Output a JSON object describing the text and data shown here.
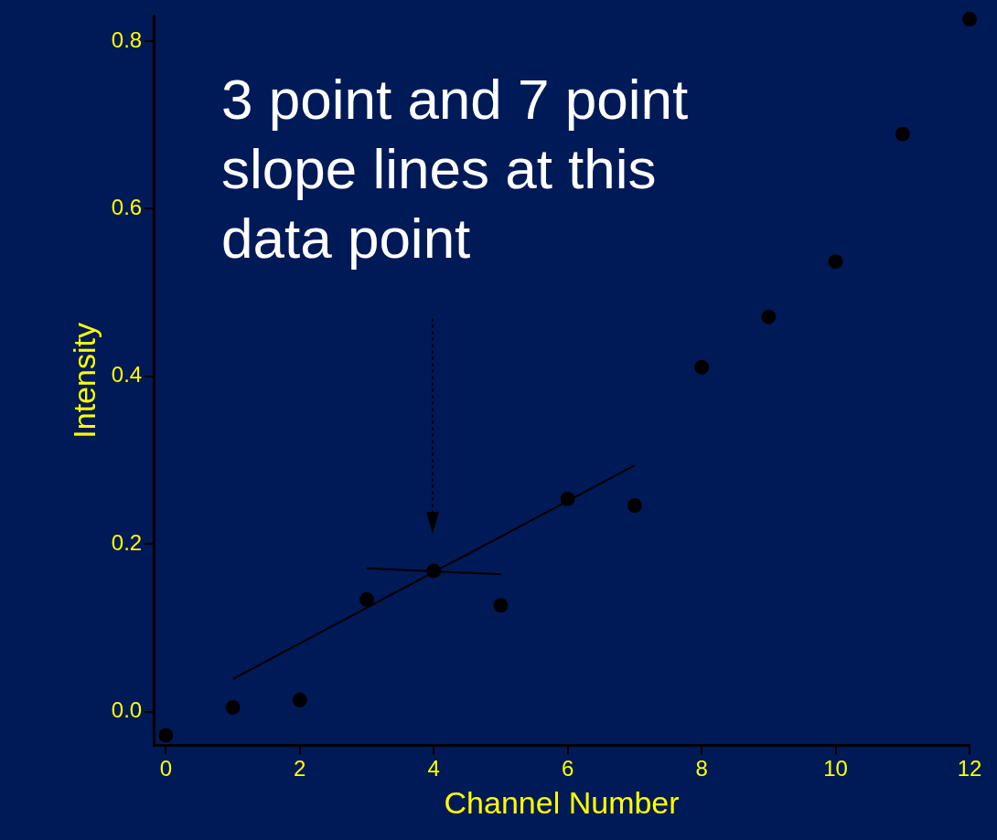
{
  "chart_data": {
    "type": "scatter",
    "xlabel": "Channel Number",
    "ylabel": "Intensity",
    "xlim": [
      -0.18,
      12
    ],
    "ylim": [
      -0.04,
      0.83
    ],
    "xticks": [
      0,
      2,
      4,
      6,
      8,
      10,
      12
    ],
    "yticks": [
      {
        "value": 0,
        "label": "0.0"
      },
      {
        "value": 0.2,
        "label": "0.2"
      },
      {
        "value": 0.4,
        "label": "0.4"
      },
      {
        "value": 0.6,
        "label": "0.6"
      },
      {
        "value": 0.8,
        "label": "0.8"
      }
    ],
    "grid": false,
    "legend": false,
    "marker": "circle",
    "series": [
      {
        "type": "scatter",
        "color": "#000000",
        "x": [
          0,
          1,
          2,
          3,
          4,
          5,
          6,
          7,
          8,
          9,
          10,
          11,
          12
        ],
        "values": [
          -0.028,
          0.005,
          0.014,
          0.134,
          0.168,
          0.127,
          0.254,
          0.246,
          0.411,
          0.471,
          0.537,
          0.689,
          0.826
        ]
      },
      {
        "type": "line",
        "color": "#000000",
        "marker": "none",
        "line_style": "solid",
        "x": [
          1,
          7
        ],
        "values": [
          0.039,
          0.294
        ]
      },
      {
        "type": "line",
        "color": "#000000",
        "marker": "none",
        "line_style": "solid",
        "x": [
          3,
          5
        ],
        "values": [
          0.171,
          0.164
        ]
      }
    ],
    "annotations": [
      "3 point and 7 point slope lines at this data point"
    ]
  }
}
